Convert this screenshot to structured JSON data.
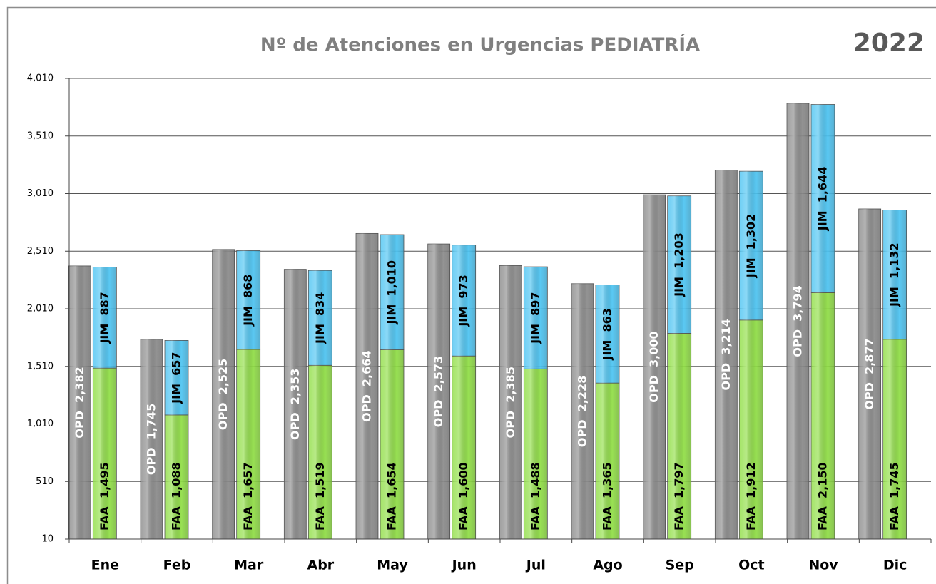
{
  "chart_data": {
    "type": "bar",
    "title": "Nº de Atenciones en Urgencias PEDIATRÍA",
    "subtitle": "2022",
    "categories": [
      "Ene",
      "Feb",
      "Mar",
      "Abr",
      "May",
      "Jun",
      "Jul",
      "Ago",
      "Sep",
      "Oct",
      "Nov",
      "Dic"
    ],
    "series": [
      {
        "name": "OPD",
        "color": "#8a8a8a",
        "stack": "a",
        "values": [
          2382,
          1745,
          2525,
          2353,
          2664,
          2573,
          2385,
          2228,
          3000,
          3214,
          3794,
          2877
        ],
        "value_labels": [
          "2,382",
          "1,745",
          "2,525",
          "2,353",
          "2,664",
          "2,573",
          "2,385",
          "2,228",
          "3,000",
          "3,214",
          "3,794",
          "2,877"
        ]
      },
      {
        "name": "FAA",
        "color": "#8fde44",
        "stack": "b",
        "values": [
          1495,
          1088,
          1657,
          1519,
          1654,
          1600,
          1488,
          1365,
          1797,
          1912,
          2150,
          1745
        ],
        "value_labels": [
          "1,495",
          "1,088",
          "1,657",
          "1,519",
          "1,654",
          "1,600",
          "1,488",
          "1,365",
          "1,797",
          "1,912",
          "2,150",
          "1,745"
        ]
      },
      {
        "name": "JIM",
        "color": "#4cc4f2",
        "stack": "b",
        "values": [
          887,
          657,
          868,
          834,
          1010,
          973,
          897,
          863,
          1203,
          1302,
          1644,
          1132
        ],
        "value_labels": [
          "887",
          "657",
          "868",
          "834",
          "1,010",
          "973",
          "897",
          "863",
          "1,203",
          "1,302",
          "1,644",
          "1,132"
        ]
      }
    ],
    "ylim": [
      10,
      4010
    ],
    "yticks": [
      10,
      510,
      {
        "value": 1010,
        "label": "1,010"
      },
      {
        "value": 1510,
        "label": "1,510"
      },
      {
        "value": 2010,
        "label": "2,010"
      },
      {
        "value": 2510,
        "label": "2,510"
      },
      {
        "value": 3010,
        "label": "3,010"
      },
      {
        "value": 3510,
        "label": "3,510"
      },
      {
        "value": 4010,
        "label": "4,010"
      }
    ],
    "grid": true
  }
}
